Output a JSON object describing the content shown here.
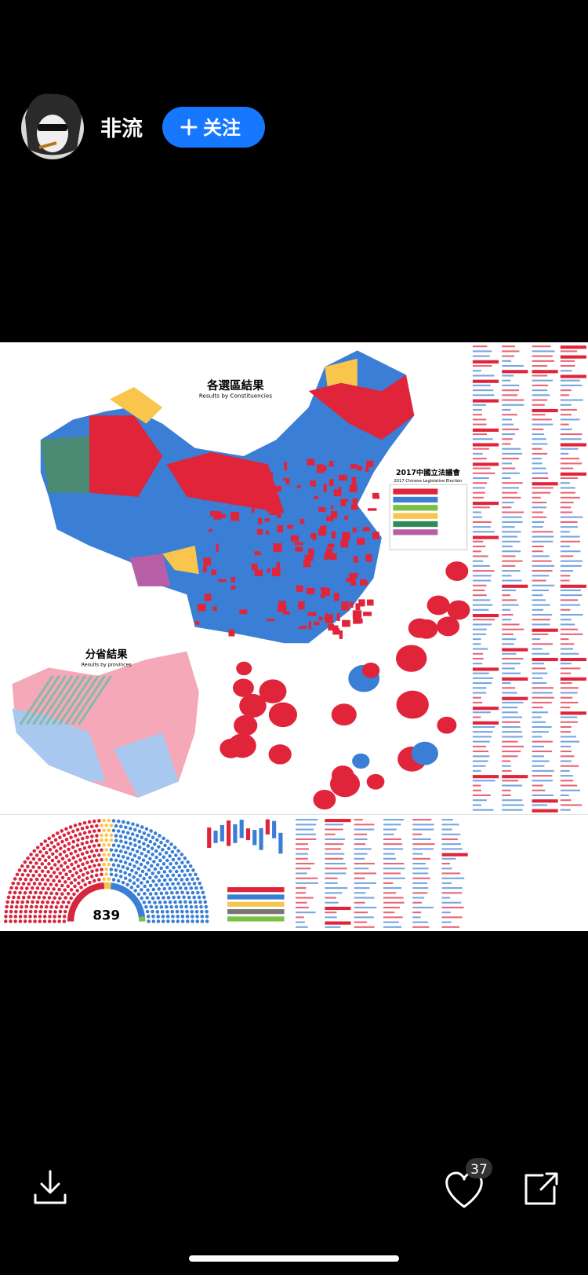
{
  "header": {
    "username": "非流",
    "follow_button": "关注"
  },
  "image": {
    "map_title": "各選區結果",
    "map_subtitle": "Results by Constituencies",
    "province_title": "分省結果",
    "province_subtitle": "Results by provinces",
    "legend_title": "2017中國立法議會",
    "legend_subtitle": "2017 Chinese Legislative Election",
    "seat_total": 839
  },
  "footer": {
    "like_count": 37
  }
}
